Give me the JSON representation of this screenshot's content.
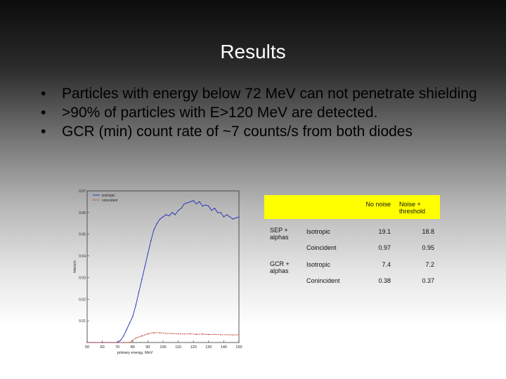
{
  "slide": {
    "title": "Results",
    "bullets": [
      "Particles with energy below 72 MeV can not penetrate shielding",
      ">90% of particles with E>120 MeV are detected.",
      "GCR (min) count rate of ~7 counts/s from both diodes"
    ],
    "bullet_symbol": "•"
  },
  "table": {
    "header": [
      "No noise",
      "Noise + threshold"
    ],
    "header_color": "#ffff00",
    "rows": [
      {
        "group": "SEP + alphas",
        "type": "Isotropic",
        "no_noise": "19.1",
        "noise_threshold": "18.8"
      },
      {
        "group": "",
        "type": "Coincident",
        "no_noise": "0.97",
        "noise_threshold": "0.95"
      },
      {
        "group": "GCR + alphas",
        "type": "Isotropic",
        "no_noise": "7.4",
        "noise_threshold": "7.2"
      },
      {
        "group": "",
        "type": "Conincident",
        "no_noise": "0.38",
        "noise_threshold": "0.37"
      }
    ]
  },
  "chart_data": {
    "type": "line",
    "xlabel": "primary energy, MeV",
    "ylabel": "hits/s/n",
    "xlim": [
      50,
      150
    ],
    "ylim": [
      0,
      0.07
    ],
    "x_ticks": [
      50,
      60,
      70,
      80,
      90,
      100,
      110,
      120,
      130,
      140,
      150
    ],
    "y_ticks": [
      0.01,
      0.02,
      0.03,
      0.04,
      0.05,
      0.06,
      0.07
    ],
    "y_tick_labels": [
      "0.01",
      "0.02",
      "0.03",
      "0.04",
      "0.05",
      "0.06",
      "0.07"
    ],
    "legend_position": "top-left",
    "series": [
      {
        "name": "isotropic",
        "color": "#1f2fb5",
        "style": "solid",
        "x": [
          50,
          60,
          70,
          72,
          74,
          76,
          78,
          80,
          82,
          84,
          86,
          88,
          90,
          92,
          94,
          96,
          98,
          100,
          102,
          104,
          106,
          108,
          110,
          112,
          114,
          116,
          118,
          120,
          122,
          124,
          126,
          128,
          130,
          132,
          134,
          136,
          138,
          140,
          142,
          144,
          146,
          148,
          150
        ],
        "values": [
          0,
          0,
          0,
          0.001,
          0.003,
          0.006,
          0.009,
          0.012,
          0.017,
          0.023,
          0.029,
          0.035,
          0.041,
          0.047,
          0.052,
          0.055,
          0.057,
          0.058,
          0.059,
          0.0585,
          0.06,
          0.059,
          0.061,
          0.062,
          0.064,
          0.0645,
          0.065,
          0.0655,
          0.064,
          0.065,
          0.063,
          0.0635,
          0.063,
          0.061,
          0.062,
          0.06,
          0.06,
          0.058,
          0.059,
          0.058,
          0.057,
          0.0575,
          0.058
        ]
      },
      {
        "name": "coincident",
        "color": "#c0392b",
        "style": "dashed",
        "x": [
          50,
          60,
          70,
          74,
          78,
          80,
          82,
          84,
          86,
          88,
          90,
          94,
          98,
          102,
          106,
          110,
          114,
          118,
          122,
          126,
          130,
          134,
          138,
          142,
          146,
          150
        ],
        "values": [
          0,
          0,
          0,
          0,
          0,
          0.001,
          0.002,
          0.0025,
          0.003,
          0.0035,
          0.004,
          0.0045,
          0.0045,
          0.0042,
          0.0041,
          0.004,
          0.0039,
          0.004,
          0.0038,
          0.0039,
          0.0037,
          0.0038,
          0.0036,
          0.0036,
          0.0035,
          0.0036
        ]
      }
    ]
  }
}
